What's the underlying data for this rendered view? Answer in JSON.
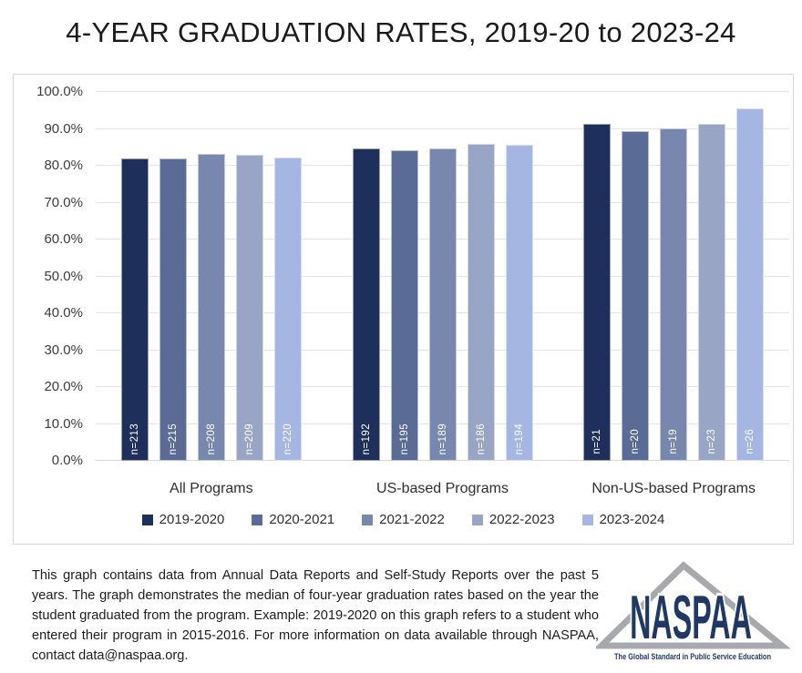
{
  "title": "4-YEAR GRADUATION RATES, 2019-20 to 2023-24",
  "chart_data": {
    "type": "bar",
    "title": "4-YEAR GRADUATION RATES, 2019-20 to 2023-24",
    "categories": [
      "All Programs",
      "US-based Programs",
      "Non-US-based Programs"
    ],
    "series": [
      {
        "name": "2019-2020",
        "color": "#1F2F5C",
        "values": [
          82.0,
          84.7,
          91.3
        ],
        "n": [
          213,
          192,
          21
        ]
      },
      {
        "name": "2020-2021",
        "color": "#5A6B96",
        "values": [
          81.9,
          84.2,
          89.3
        ],
        "n": [
          215,
          195,
          20
        ]
      },
      {
        "name": "2021-2022",
        "color": "#7787AD",
        "values": [
          83.1,
          84.8,
          90.2
        ],
        "n": [
          208,
          189,
          19
        ]
      },
      {
        "name": "2022-2023",
        "color": "#98A5C5",
        "values": [
          83.0,
          86.0,
          91.4
        ],
        "n": [
          209,
          186,
          23
        ]
      },
      {
        "name": "2023-2024",
        "color": "#A5B6E3",
        "values": [
          82.3,
          85.7,
          95.6
        ],
        "n": [
          220,
          194,
          26
        ]
      }
    ],
    "xlabel": "",
    "ylabel": "",
    "ylim": [
      0,
      100
    ],
    "ytick_step": 10,
    "ytick_suffix": "%",
    "ytick_decimals": 1,
    "bar_label_prefix": "n=",
    "grid": true,
    "legend_position": "bottom"
  },
  "footnote": "This graph contains data from Annual Data Reports and Self-Study Reports over the past 5 years. The graph demonstrates the median of four-year graduation rates based on the year the student graduated from the program. Example: 2019-2020 on this graph refers to a student who entered their program in 2015-2016. For more information on data available through NASPAA, contact data@naspaa.org.",
  "logo": {
    "wordmark": "NASPAA",
    "tagline": "The Global Standard in Public Service Education",
    "navy": "#1F3864",
    "gray": "#A7A9AC"
  }
}
